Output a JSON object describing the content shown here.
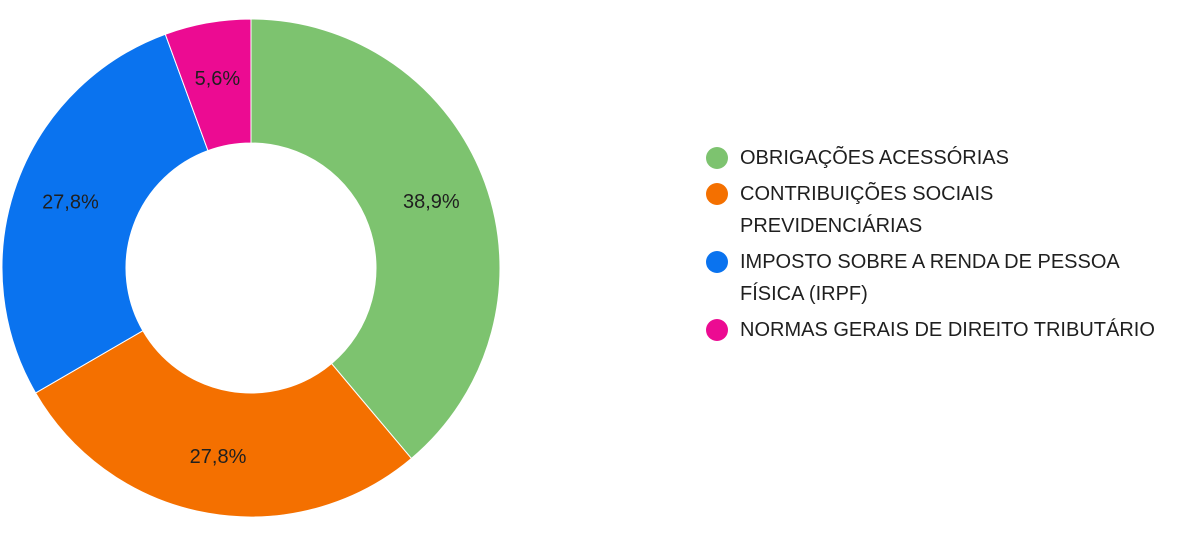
{
  "chart_data": {
    "type": "pie",
    "donut": true,
    "title": "",
    "legend_position": "right",
    "slices": [
      {
        "label": "OBRIGAÇÕES ACESSÓRIAS",
        "value": 38.9,
        "value_label": "38,9%",
        "color": "#7dc36f"
      },
      {
        "label": "CONTRIBUIÇÕES SOCIAIS PREVIDENCIÁRIAS",
        "value": 27.8,
        "value_label": "27,8%",
        "color": "#f47000"
      },
      {
        "label": "IMPOSTO SOBRE A RENDA DE PESSOA FÍSICA (IRPF)",
        "value": 27.8,
        "value_label": "27,8%",
        "color": "#0a73ef"
      },
      {
        "label": "NORMAS GERAIS DE DIREITO TRIBUTÁRIO",
        "value": 5.6,
        "value_label": "5,6%",
        "color": "#ec0b92"
      }
    ]
  }
}
